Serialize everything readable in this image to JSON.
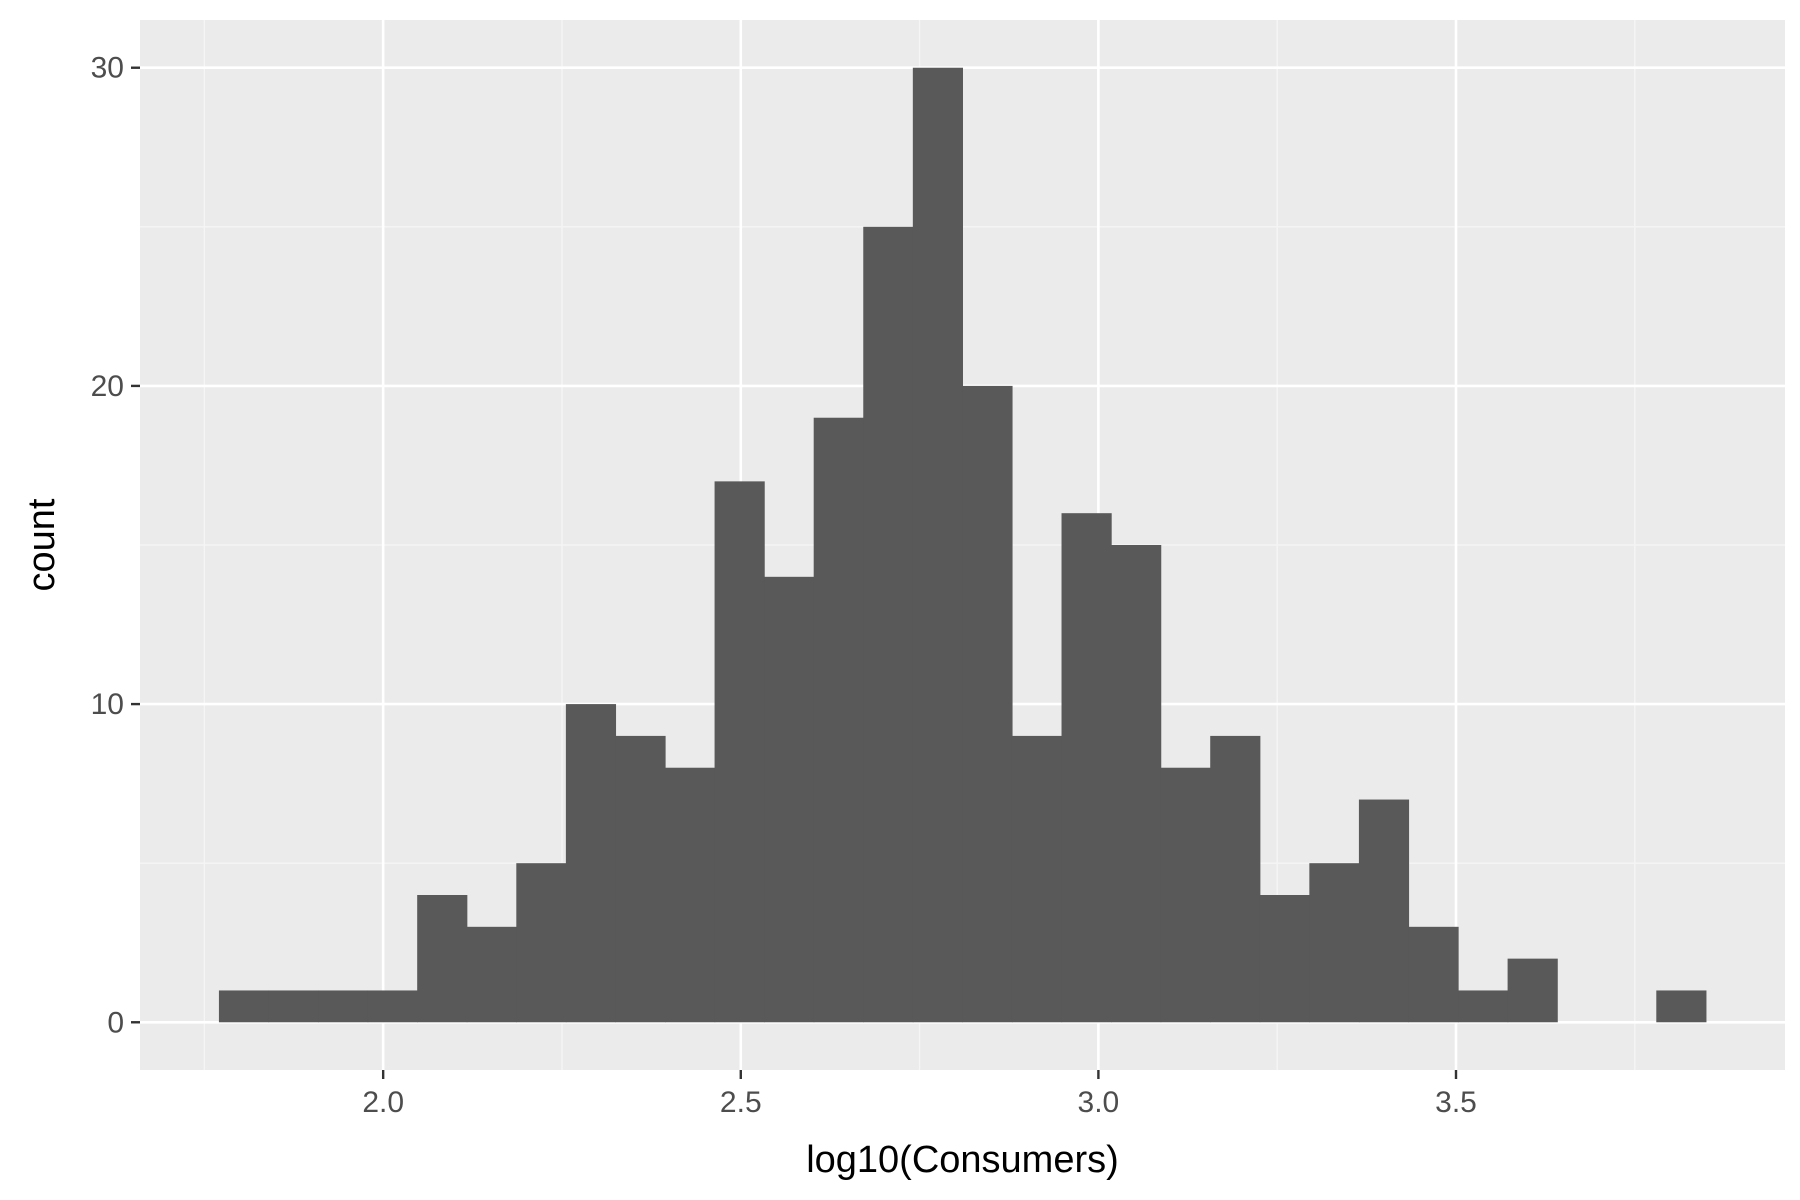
{
  "chart_data": {
    "type": "histogram",
    "title": "",
    "xlabel": "log10(Consumers)",
    "ylabel": "count",
    "xlim": [
      1.66,
      3.96
    ],
    "ylim": [
      -1.5,
      31.5
    ],
    "x_ticks": [
      2.0,
      2.5,
      3.0,
      3.5
    ],
    "x_tick_labels": [
      "2.0",
      "2.5",
      "3.0",
      "3.5"
    ],
    "y_ticks": [
      0,
      10,
      20,
      30
    ],
    "y_tick_labels": [
      "0",
      "10",
      "20",
      "30"
    ],
    "x_minor_ticks": [
      1.75,
      2.25,
      2.75,
      3.25,
      3.75
    ],
    "y_minor_ticks": [
      5,
      15,
      25
    ],
    "grid": true,
    "bin_width": 0.0693,
    "bin_centers": [
      1.805,
      1.8743,
      1.9436,
      2.0129,
      2.0822,
      2.1515,
      2.2208,
      2.2901,
      2.3594,
      2.4287,
      2.498,
      2.5673,
      2.6366,
      2.7059,
      2.7752,
      2.8445,
      2.9138,
      2.9831,
      3.0524,
      3.1217,
      3.191,
      3.2603,
      3.3296,
      3.3989,
      3.4682,
      3.5375,
      3.6068,
      3.6761,
      3.7454,
      3.8147
    ],
    "counts": [
      1,
      1,
      1,
      1,
      4,
      3,
      5,
      10,
      9,
      8,
      17,
      14,
      19,
      25,
      30,
      20,
      9,
      16,
      15,
      8,
      9,
      4,
      5,
      7,
      3,
      1,
      2,
      0,
      0,
      1
    ],
    "colors": {
      "bar_fill": "#595959",
      "panel_background": "#ebebeb",
      "grid_major": "#ffffff",
      "grid_minor": "#f5f5f5",
      "tick_mark": "#333333",
      "tick_label": "#4d4d4d",
      "axis_title": "#000000"
    }
  }
}
